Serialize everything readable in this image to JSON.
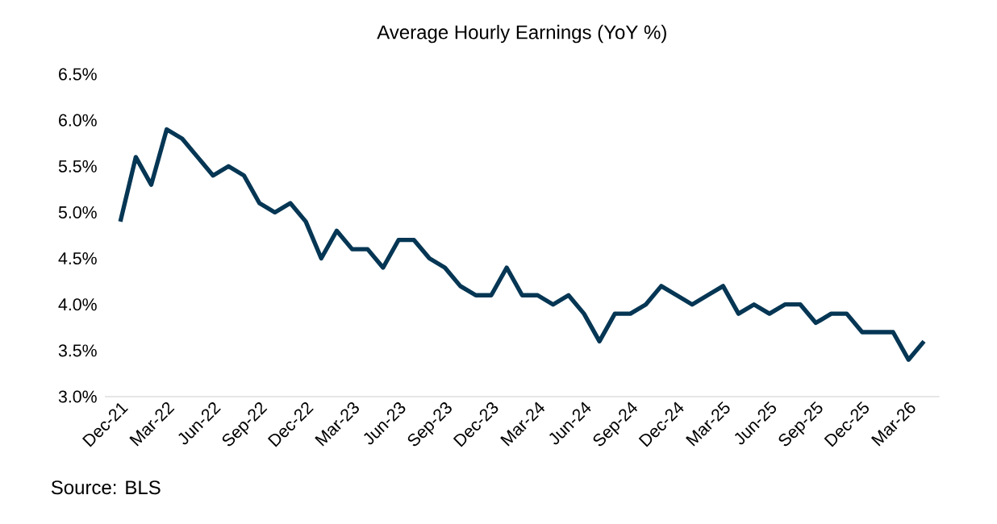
{
  "chart_data": {
    "type": "line",
    "title": "Average Hourly Earnings (YoY %)",
    "categories": [
      "Dec-21",
      null,
      null,
      "Mar-22",
      null,
      null,
      "Jun-22",
      null,
      null,
      "Sep-22",
      null,
      null,
      "Dec-22",
      null,
      null,
      "Mar-23",
      null,
      null,
      "Jun-23",
      null,
      null,
      "Sep-23",
      null,
      null,
      "Dec-23",
      null,
      null,
      "Mar-24",
      null,
      null,
      "Jun-24",
      null,
      null,
      "Sep-24",
      null,
      null,
      "Dec-24",
      null,
      null,
      "Mar-25",
      null,
      null,
      "Jun-25",
      null,
      null,
      "Sep-25",
      null,
      null,
      "Dec-25",
      null,
      null,
      "Mar-26",
      null
    ],
    "values": [
      4.9,
      5.6,
      5.3,
      5.9,
      5.8,
      5.6,
      5.4,
      5.5,
      5.4,
      5.1,
      5.0,
      5.1,
      4.9,
      4.5,
      4.8,
      4.6,
      4.6,
      4.4,
      4.7,
      4.7,
      4.5,
      4.4,
      4.2,
      4.1,
      4.1,
      4.4,
      4.1,
      4.1,
      4.0,
      4.1,
      3.9,
      3.6,
      3.9,
      3.9,
      4.0,
      4.2,
      4.1,
      4.0,
      4.1,
      4.2,
      3.9,
      4.0,
      3.9,
      4.0,
      4.0,
      3.8,
      3.9,
      3.9,
      3.7,
      3.7,
      3.7,
      3.4,
      3.6
    ],
    "color": "#053654",
    "ylim": [
      3.0,
      6.5
    ],
    "yticks": [
      {
        "value": 3.0,
        "label": "3.0%"
      },
      {
        "value": 3.5,
        "label": "3.5%"
      },
      {
        "value": 4.0,
        "label": "4.0%"
      },
      {
        "value": 4.5,
        "label": "4.5%"
      },
      {
        "value": 5.0,
        "label": "5.0%"
      },
      {
        "value": 5.5,
        "label": "5.5%"
      },
      {
        "value": 6.0,
        "label": "6.0%"
      },
      {
        "value": 6.5,
        "label": "6.5%"
      }
    ],
    "annotations": [
      "Source: BLS"
    ]
  }
}
